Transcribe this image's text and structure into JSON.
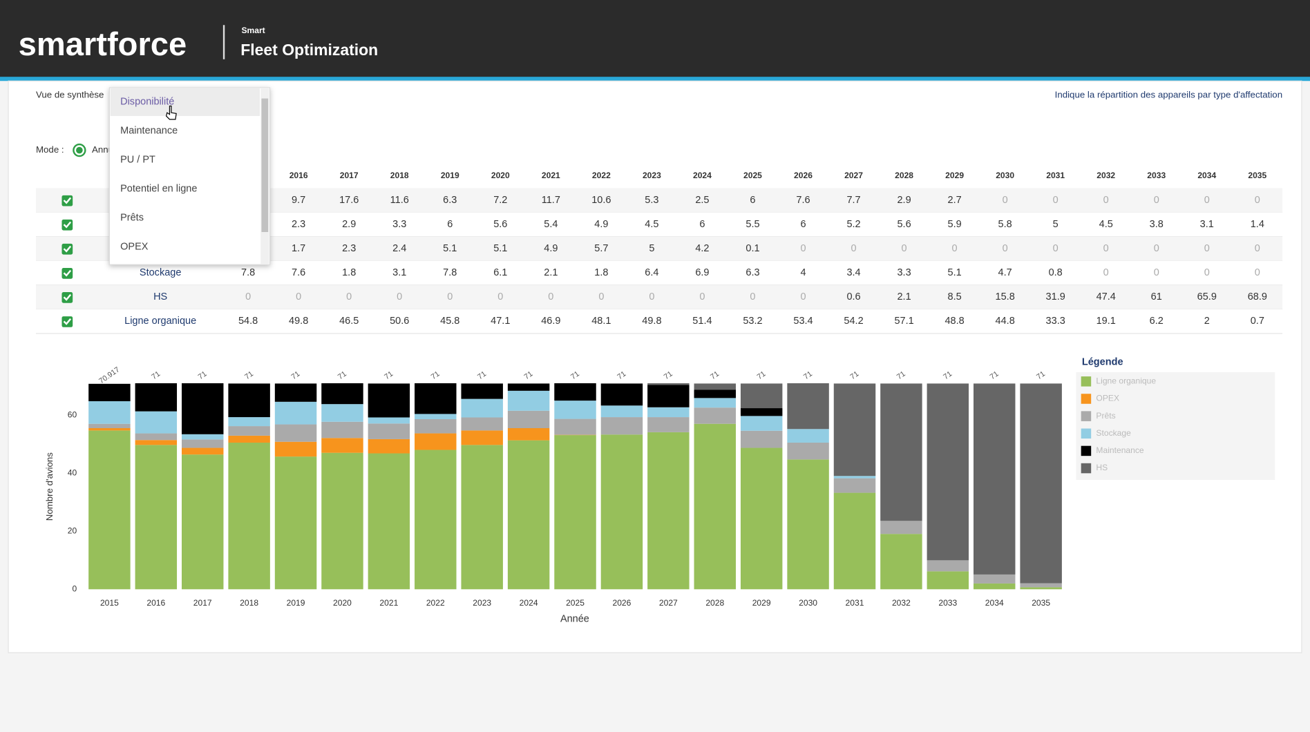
{
  "header": {
    "brand": "smartforce",
    "sup": "Smart",
    "app": "Fleet Optimization"
  },
  "toolbar": {
    "view_label": "Vue de synthèse",
    "mode_label": "Mode :",
    "mode_value": "Annuel",
    "info": "Indique la répartition des appareils par type d'affectation"
  },
  "dropdown": {
    "options": [
      "Disponibilité",
      "Maintenance",
      "PU / PT",
      "Potentiel en ligne",
      "Prêts",
      "OPEX"
    ]
  },
  "chart_data": {
    "type": "bar",
    "stacked": true,
    "categories": [
      "2015",
      "2016",
      "2017",
      "2018",
      "2019",
      "2020",
      "2021",
      "2022",
      "2023",
      "2024",
      "2025",
      "2026",
      "2027",
      "2028",
      "2029",
      "2030",
      "2031",
      "2032",
      "2033",
      "2034",
      "2035"
    ],
    "series": [
      {
        "name": "Ligne organique",
        "color": "#97bf5a",
        "values": [
          54.8,
          49.8,
          46.5,
          50.6,
          45.8,
          47.1,
          46.9,
          48.1,
          49.8,
          51.4,
          53.2,
          53.4,
          54.2,
          57.1,
          48.8,
          44.8,
          33.3,
          19.1,
          6.2,
          2,
          0.7
        ]
      },
      {
        "name": "OPEX",
        "color": "#f7941d",
        "values": [
          0.8,
          1.7,
          2.3,
          2.4,
          5.1,
          5.1,
          4.9,
          5.7,
          5,
          4.2,
          0.1,
          0,
          0,
          0,
          0,
          0,
          0,
          0,
          0,
          0,
          0
        ]
      },
      {
        "name": "Prêts",
        "color": "#aaaaaa",
        "values": [
          1.5,
          2.3,
          2.9,
          3.3,
          6,
          5.6,
          5.4,
          4.9,
          4.5,
          6,
          5.5,
          6,
          5.2,
          5.6,
          5.9,
          5.8,
          5,
          4.5,
          3.8,
          3.1,
          1.4
        ]
      },
      {
        "name": "Stockage",
        "color": "#92cde3",
        "values": [
          7.8,
          7.6,
          1.8,
          3.1,
          7.8,
          6.1,
          2.1,
          1.8,
          6.4,
          6.9,
          6.3,
          4,
          3.4,
          3.3,
          5.1,
          4.7,
          0.8,
          0,
          0,
          0,
          0
        ]
      },
      {
        "name": "Maintenance",
        "color": "#000000",
        "values": [
          6,
          9.7,
          17.6,
          11.6,
          6.3,
          7.2,
          11.7,
          10.6,
          5.3,
          2.5,
          6,
          7.6,
          7.7,
          2.9,
          2.7,
          0,
          0,
          0,
          0,
          0,
          0
        ]
      },
      {
        "name": "HS",
        "color": "#666666",
        "values": [
          0,
          0,
          0,
          0,
          0,
          0,
          0,
          0,
          0,
          0,
          0,
          0,
          0.6,
          2.1,
          8.5,
          15.8,
          31.9,
          47.4,
          61,
          65.9,
          68.9
        ]
      }
    ],
    "totals": [
      70.917,
      71,
      71,
      71,
      71,
      71,
      71,
      71,
      71,
      71,
      71,
      71,
      71,
      71,
      71,
      71,
      71,
      71,
      71,
      71,
      71
    ],
    "ylim": [
      0,
      71
    ],
    "yticks": [
      0,
      20,
      40,
      60
    ],
    "ylabel": "Nombre d'avions",
    "xlabel": "Année",
    "legend_title": "Légende"
  }
}
